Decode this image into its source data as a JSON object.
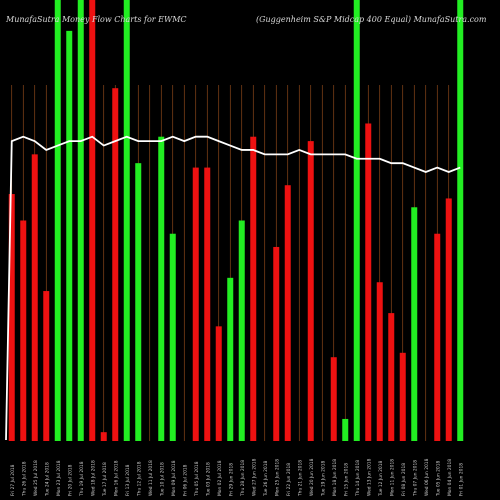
{
  "header": {
    "left": "MunafaSutra  Money Flow  Charts for EWMC",
    "right": "(Guggenheim S&P Midcap 400 Equal) MunafaSutra.com"
  },
  "colors": {
    "background": "#000000",
    "up": "#22ee22",
    "down": "#ee1111",
    "line": "#ffffff",
    "grid": "#a0521e",
    "label": "#cccccc"
  },
  "chart_data": {
    "type": "bar",
    "title": "MunafaSutra  Money Flow  Charts for EWMC",
    "subtitle": "(Guggenheim S&P Midcap 400 Equal) MunafaSutra.com",
    "ylim": [
      0,
      100
    ],
    "grid": "vertical",
    "categories": [
      "Fri 27 Jul",
      "Thu 26 Jul",
      "Wed 25 Jul",
      "Tue 24 Jul",
      "Mon 23 Jul",
      "Fri 20 Jul",
      "Thu 19 Jul",
      "Wed 18 Jul",
      "Tue 17 Jul",
      "Mon 16 Jul",
      "Fri 13 Jul",
      "Thu 12 Jul",
      "Wed 11 Jul",
      "Tue 10 Jul",
      "Mon 09 Jul",
      "Fri 06 Jul",
      "Thu 05 Jul",
      "Tue 03 Jul",
      "Mon 02 Jul",
      "Fri 29 Jun",
      "Thu 28 Jun",
      "Wed 27 Jun",
      "Tue 26 Jun",
      "Mon 25 Jun",
      "Fri 22 Jun",
      "Thu 21 Jun",
      "Wed 20 Jun",
      "Tue 19 Jun",
      "Mon 18 Jun",
      "Fri 15 Jun",
      "Thu 14 Jun",
      "Wed 13 Jun",
      "Tue 12 Jun",
      "Mon 11 Jun",
      "Fri 08 Jun",
      "Thu 07 Jun",
      "Wed 06 Jun",
      "Tue 05 Jun",
      "Mon 04 Jun",
      "Fri 01 Jun"
    ],
    "x_labels": [
      "Fri 27 Jul 2018",
      "Thu 26 Jul 2018",
      "Wed 25 Jul 2018",
      "Tue 24 Jul 2018",
      "Mon 23 Jul 2018",
      "Fri 20 Jul 2018",
      "Thu 19 Jul 2018",
      "Wed 18 Jul 2018",
      "Tue 17 Jul 2018",
      "Mon 16 Jul 2018",
      "Fri 13 Jul 2018",
      "Thu 12 Jul 2018",
      "Wed 11 Jul 2018",
      "Tue 10 Jul 2018",
      "Mon 09 Jul 2018",
      "Fri 06 Jul 2018",
      "Thu 05 Jul 2018",
      "Tue 03 Jul 2018",
      "Mon 02 Jul 2018",
      "Fri 29 Jun 2018",
      "Thu 28 Jun 2018",
      "Wed 27 Jun 2018",
      "Tue 26 Jun 2018",
      "Mon 25 Jun 2018",
      "Fri 22 Jun 2018",
      "Thu 21 Jun 2018",
      "Wed 20 Jun 2018",
      "Tue 19 Jun 2018",
      "Mon 18 Jun 2018",
      "Fri 15 Jun 2018",
      "Thu 14 Jun 2018",
      "Wed 13 Jun 2018",
      "Tue 12 Jun 2018",
      "Mon 11 Jun 2018",
      "Fri 08 Jun 2018",
      "Thu 07 Jun 2018",
      "Wed 06 Jun 2018",
      "Tue 05 Jun 2018",
      "Mon 04 Jun 2018",
      "Fri 01 Jun 2018"
    ],
    "values": [
      56,
      50,
      65,
      34,
      100,
      93,
      100,
      100,
      2,
      80,
      100,
      63,
      0,
      69,
      47,
      0,
      62,
      62,
      26,
      37,
      50,
      69,
      0,
      44,
      58,
      0,
      68,
      0,
      19,
      5,
      100,
      72,
      36,
      29,
      20,
      53,
      0,
      47,
      55,
      100
    ],
    "directions": [
      "down",
      "down",
      "down",
      "down",
      "up",
      "up",
      "up",
      "down",
      "down",
      "down",
      "up",
      "up",
      "down",
      "up",
      "up",
      "down",
      "down",
      "down",
      "down",
      "up",
      "up",
      "down",
      "up",
      "down",
      "down",
      "down",
      "down",
      "down",
      "down",
      "up",
      "up",
      "down",
      "down",
      "down",
      "down",
      "up",
      "up",
      "down",
      "down",
      "up"
    ],
    "flow_line": [
      68,
      69,
      68,
      66,
      67,
      68,
      68,
      69,
      67,
      68,
      69,
      68,
      68,
      68,
      69,
      68,
      69,
      69,
      68,
      67,
      66,
      66,
      65,
      65,
      65,
      66,
      65,
      65,
      65,
      65,
      64,
      64,
      64,
      63,
      63,
      62,
      61,
      62,
      61,
      62
    ]
  }
}
